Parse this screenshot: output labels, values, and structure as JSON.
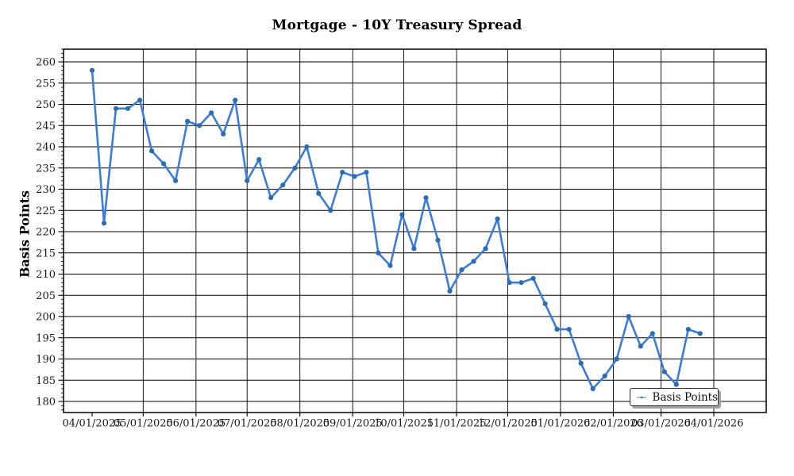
{
  "figure": {
    "title": "Mortgage - 10Y Treasury Spread"
  },
  "chart_data": {
    "type": "line",
    "title": "Mortgage - 10Y Treasury Spread",
    "xlabel": "",
    "ylabel": "Basis Points",
    "grid": true,
    "legend": {
      "position": "lower right",
      "entries": [
        "Basis Points"
      ]
    },
    "x": [
      "04/01/2025",
      "04/08/2025",
      "04/15/2025",
      "04/22/2025",
      "04/29/2025",
      "05/06/2025",
      "05/13/2025",
      "05/20/2025",
      "05/27/2025",
      "06/03/2025",
      "06/10/2025",
      "06/17/2025",
      "06/24/2025",
      "07/01/2025",
      "07/08/2025",
      "07/15/2025",
      "07/22/2025",
      "07/29/2025",
      "08/05/2025",
      "08/12/2025",
      "08/19/2025",
      "08/26/2025",
      "09/02/2025",
      "09/09/2025",
      "09/16/2025",
      "09/23/2025",
      "09/30/2025",
      "10/07/2025",
      "10/14/2025",
      "10/21/2025",
      "10/28/2025",
      "11/04/2025",
      "11/11/2025",
      "11/18/2025",
      "11/25/2025",
      "12/02/2025",
      "12/09/2025",
      "12/16/2025",
      "12/23/2025",
      "12/30/2025",
      "01/06/2026",
      "01/13/2026",
      "01/20/2026",
      "01/27/2026",
      "02/03/2026",
      "02/10/2026",
      "02/17/2026",
      "02/24/2026",
      "03/03/2026",
      "03/10/2026",
      "03/17/2026",
      "03/24/2026"
    ],
    "series": [
      {
        "name": "Basis Points",
        "values": [
          258,
          222,
          249,
          249,
          251,
          239,
          236,
          232,
          246,
          245,
          248,
          243,
          251,
          232,
          237,
          228,
          231,
          235,
          240,
          229,
          225,
          234,
          233,
          234,
          215,
          212,
          224,
          216,
          228,
          218,
          206,
          211,
          213,
          216,
          223,
          208,
          208,
          209,
          203,
          197,
          197,
          189,
          183,
          186,
          190,
          200,
          193,
          196,
          187,
          184,
          197,
          196
        ]
      }
    ],
    "x_tick_labels": [
      "04/01/2025",
      "05/01/2025",
      "06/01/2025",
      "07/01/2025",
      "08/01/2025",
      "09/01/2025",
      "10/01/2025",
      "11/01/2025",
      "12/01/2025",
      "01/01/2026",
      "02/01/2026",
      "03/01/2026",
      "04/01/2026"
    ],
    "y_ticks": [
      180,
      185,
      190,
      195,
      200,
      205,
      210,
      215,
      220,
      225,
      230,
      235,
      240,
      245,
      250,
      255,
      260
    ],
    "ylim": [
      177.4,
      263.0
    ],
    "colors": {
      "line": "#3b7dd8",
      "marker": "#2a6db6",
      "grid": "#000000",
      "spine": "#000000",
      "tick_label": "#1a1a1a"
    }
  }
}
